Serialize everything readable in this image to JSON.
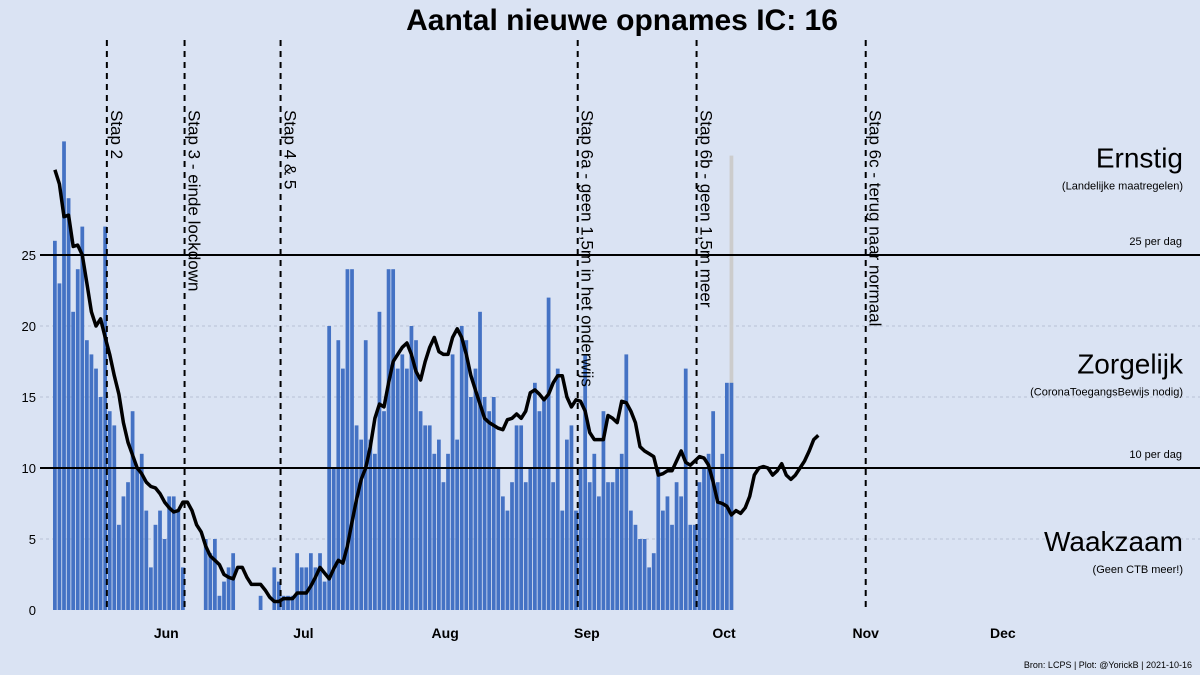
{
  "chart_data": {
    "type": "bar",
    "title": "Aantal nieuwe opnames IC:  16",
    "xlabel": "",
    "ylabel": "",
    "ylim": [
      0,
      32
    ],
    "yticks": [
      0,
      5,
      10,
      15,
      20,
      25
    ],
    "x_start": "2021-05-07",
    "months": [
      {
        "label": "Jun",
        "date": "2021-06-01"
      },
      {
        "label": "Jul",
        "date": "2021-07-01"
      },
      {
        "label": "Aug",
        "date": "2021-08-01"
      },
      {
        "label": "Sep",
        "date": "2021-09-01"
      },
      {
        "label": "Oct",
        "date": "2021-10-01"
      },
      {
        "label": "Nov",
        "date": "2021-11-01"
      },
      {
        "label": "Dec",
        "date": "2021-12-01"
      }
    ],
    "x_end": "2021-12-31",
    "grid": true,
    "colors": {
      "bars": "#4472c4",
      "line": "#000000",
      "background": "#dae3f3",
      "highlight": "#cccccc"
    },
    "series": [
      {
        "kind": "bars",
        "values": [
          26,
          23,
          33,
          29,
          21,
          24,
          27,
          19,
          18,
          17,
          15,
          27,
          14,
          13,
          6,
          8,
          9,
          14,
          10,
          11,
          7,
          3,
          6,
          7,
          5,
          8,
          8,
          7,
          3,
          0,
          0,
          0,
          0,
          5,
          4,
          5,
          1,
          2,
          3,
          4,
          0,
          0,
          0,
          0,
          0,
          1,
          0,
          0,
          3,
          2,
          1,
          1,
          1,
          4,
          3,
          3,
          4,
          3,
          4,
          2,
          20,
          10,
          19,
          17,
          24,
          24,
          13,
          12,
          19,
          12,
          11,
          21,
          14,
          24,
          24,
          17,
          18,
          17,
          20,
          19,
          14,
          13,
          13,
          11,
          12,
          9,
          11,
          18,
          12,
          20,
          19,
          15,
          17,
          21,
          15,
          14,
          15,
          10,
          8,
          7,
          9,
          13,
          13,
          9,
          10,
          16,
          14,
          15,
          22,
          9,
          17,
          7,
          12,
          13,
          7,
          10,
          18,
          9,
          11,
          8,
          14,
          9,
          9,
          10,
          11,
          18,
          7,
          6,
          5,
          5,
          3,
          4,
          10,
          7,
          8,
          6,
          9,
          8,
          17,
          6,
          6,
          9,
          10,
          11,
          14,
          9,
          11,
          16,
          16
        ]
      },
      {
        "kind": "line",
        "values": [
          31,
          30,
          27.7,
          27.8,
          25.6,
          25.7,
          25,
          23,
          21,
          20,
          20.5,
          19.2,
          18,
          16.5,
          15.2,
          13.2,
          11.8,
          10.9,
          10,
          9.6,
          9,
          8.7,
          8.6,
          8.2,
          7.6,
          7.2,
          6.9,
          7,
          7.6,
          7.6,
          7,
          6,
          5.5,
          4.5,
          3.8,
          3.5,
          3.2,
          2.5,
          2.3,
          2.2,
          3,
          3,
          2.3,
          1.8,
          1.8,
          1.8,
          1.4,
          0.9,
          0.6,
          0.6,
          0.8,
          0.8,
          0.8,
          1.2,
          1.2,
          1.2,
          1.7,
          2.3,
          3,
          2.6,
          2.2,
          2.9,
          3.5,
          3.3,
          4.5,
          6.2,
          7.8,
          9.2,
          10,
          11.5,
          13.5,
          14.5,
          14.3,
          16,
          17.5,
          18,
          18.5,
          18.8,
          18,
          16.8,
          16.2,
          17.5,
          18.5,
          19.2,
          18.2,
          18,
          18,
          19.2,
          19.8,
          19.2,
          18,
          16.5,
          15.5,
          14.5,
          13.5,
          13.2,
          13,
          12.8,
          12.7,
          13.4,
          13.5,
          13.8,
          13.5,
          14,
          15.3,
          15.5,
          15.2,
          14.8,
          15.2,
          16,
          16.5,
          16.5,
          15,
          14.3,
          14.8,
          14.7,
          14,
          12.5,
          12,
          12,
          12,
          13.7,
          13.5,
          13.2,
          14.7,
          14.6,
          14,
          13.2,
          11.5,
          11.2,
          11,
          10.8,
          9.5,
          9.6,
          9.8,
          9.8,
          10.5,
          11.2,
          10.4,
          10.2,
          10.5,
          10.8,
          10.7,
          10.2,
          9,
          7.6,
          7.5,
          7.3,
          6.7,
          7,
          6.8,
          7.2,
          8,
          9.5,
          10,
          10.1,
          10,
          9.5,
          9.8,
          10.3,
          9.5,
          9.2,
          9.5,
          10,
          10.5,
          11.2,
          12,
          12.3
        ]
      }
    ],
    "highlight_last_bar": true,
    "reference_lines": [
      {
        "value": 25,
        "label": "25 per dag"
      },
      {
        "value": 10,
        "label": "10 per dag"
      }
    ],
    "zones": [
      {
        "name": "Ernstig",
        "sub": "(Landelijke maatregelen)",
        "y": 32
      },
      {
        "name": "Zorgelijk",
        "sub": "(CoronaToegangsBewijs nodig)",
        "y": 17.5
      },
      {
        "name": "Waakzaam",
        "sub": "(Geen CTB meer!)",
        "y": 5
      }
    ],
    "events": [
      {
        "label": "Stap 2",
        "date": "2021-05-19"
      },
      {
        "label": "Stap 3 - einde lockdown",
        "date": "2021-06-05"
      },
      {
        "label": "Stap 4 & 5",
        "date": "2021-06-26"
      },
      {
        "label": "Stap 6a - geen 1,5m in het onderwijs",
        "date": "2021-08-30"
      },
      {
        "label": "Stap 6b - geen 1,5m meer",
        "date": "2021-09-25"
      },
      {
        "label": "Stap 6c - terug naar normaal",
        "date": "2021-11-01"
      }
    ],
    "source": "Bron: LCPS | Plot: @YorickB |  2021-10-16"
  }
}
